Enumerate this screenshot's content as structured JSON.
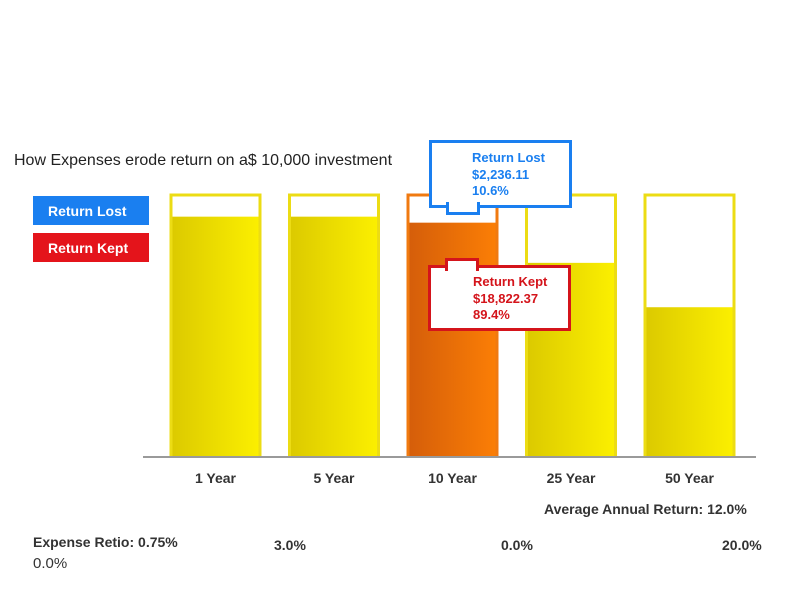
{
  "title": "How Expenses erode return on a$ 10,000 investment",
  "legend": {
    "lost_label": "Return Lost",
    "kept_label": "Return Kept"
  },
  "colors": {
    "lost": "#1a7ff0",
    "kept": "#e4141b",
    "bar_fill": "#f2e600",
    "bar_fill_active": "#f57d00",
    "bar_frame": "#ecdc14"
  },
  "tooltip": {
    "lost": {
      "title": "Return Lost",
      "amount": "$2,236.11",
      "percent": "10.6%"
    },
    "kept": {
      "title": "Return Kept",
      "amount": "$18,822.37",
      "percent": "89.4%"
    }
  },
  "footer": {
    "avg_return": "Average Annual Return: 12.0%",
    "expense_ratio_label": "Expense Retio: 0.75%",
    "expense_ratio_value": "0.0%",
    "slider_ticks": [
      "3.0%",
      "0.0%",
      "20.0%"
    ]
  },
  "chart_data": {
    "type": "bar",
    "title": "How Expenses erode return on a$ 10,000 investment",
    "categories": [
      "1 Year",
      "5 Year",
      "10 Year",
      "25 Year",
      "50 Year"
    ],
    "series": [
      {
        "name": "Return Kept",
        "values": [
          91.7,
          91.7,
          89.4,
          74.0,
          57.0
        ]
      },
      {
        "name": "Return Lost",
        "values": [
          8.3,
          8.3,
          10.6,
          26.0,
          43.0
        ]
      }
    ],
    "ylim": [
      0,
      100
    ],
    "active_category": "10 Year",
    "grid": false
  }
}
